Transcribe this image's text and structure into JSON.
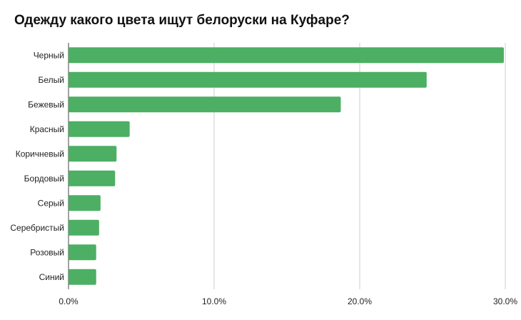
{
  "title": "Одежду какого цвета ищут белоруски на Куфаре?",
  "colors": {
    "bar": "#4caf63",
    "grid": "#cccccc",
    "axis": "#444444"
  },
  "chart_data": {
    "type": "bar",
    "orientation": "horizontal",
    "title": "Одежду какого цвета ищут белоруски на Куфаре?",
    "categories": [
      "Черный",
      "Белый",
      "Бежевый",
      "Красный",
      "Коричневый",
      "Бордовый",
      "Серый",
      "Серебристый",
      "Розовый",
      "Синий"
    ],
    "values": [
      29.9,
      24.6,
      18.7,
      4.2,
      3.3,
      3.2,
      2.2,
      2.1,
      1.9,
      1.9
    ],
    "xlim": [
      0,
      30
    ],
    "xticks": [
      "0.0%",
      "10.0%",
      "20.0%",
      "30.0%"
    ],
    "xtick_values": [
      0,
      10,
      20,
      30
    ],
    "xlabel": "",
    "ylabel": "",
    "grid": "vertical",
    "legend": "none"
  }
}
